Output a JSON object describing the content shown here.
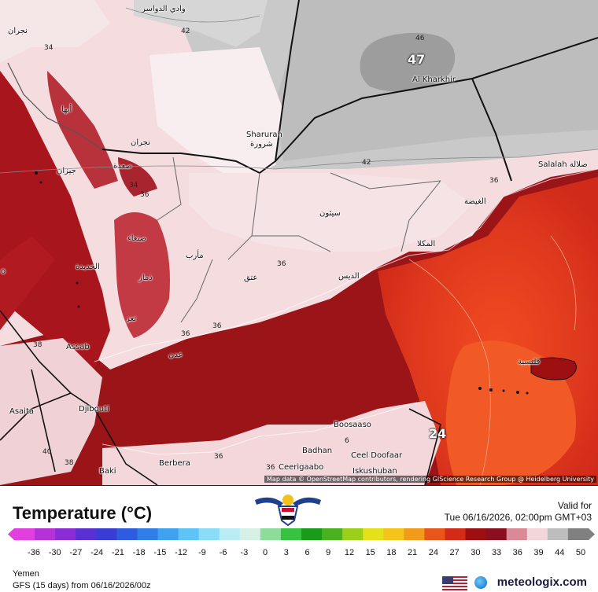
{
  "map": {
    "labels": {
      "wadi_dawasir": "وادي الدواسر",
      "najran_top": "نجران",
      "abha": "أبها",
      "najran": "نجران",
      "jizan": "جيزان",
      "saada": "صعدة",
      "sharurah": "Sharurah",
      "sharurah_ar": "شرورة",
      "al_kharkhir": "Al Kharkhir",
      "salalah": "Salalah صلالة",
      "al_ghaydah": "الغيضة",
      "sayun": "سيئون",
      "sanaa": "صنعاء",
      "hodeidah": "الحديدة",
      "marib": "مأرب",
      "dhamar": "ذمار",
      "ataq": "عتق",
      "mukalla": "المكلا",
      "dis": "الديس",
      "taiz": "تعز",
      "aden": "عدن",
      "assab": "Assab",
      "asaita": "Asaita",
      "djibouti": "Djibouti",
      "socotra": "قلنسية",
      "boosaaso": "Boosaaso",
      "badhan": "Badhan",
      "ceel_doofaar": "Ceel Doofaar",
      "ceerigaabo": "Ceerigaabo",
      "iskushuban": "Iskushuban",
      "berbera": "Berbera",
      "baki": "Baki",
      "o_edge": "o"
    },
    "contours": {
      "c42_top": "42",
      "c46": "46",
      "c42_mid": "42",
      "c34a": "34",
      "c34b": "34",
      "c36a": "36",
      "c36b": "36",
      "c36c": "36",
      "c36d": "36",
      "c36e": "36",
      "c36f": "36",
      "c38a": "38",
      "c38b": "38",
      "c40": "40",
      "c36g": "36",
      "c6": "6"
    },
    "max_value": "47",
    "min_value": "24",
    "attribution": "Map data © OpenStreetMap contributors, rendering GIScience Research Group @ Heidelberg University"
  },
  "legend": {
    "title": "Temperature (°C)",
    "valid_label": "Valid for",
    "valid_time": "Tue 06/16/2026, 02:00pm GMT+03",
    "ticks": [
      "-36",
      "-30",
      "-27",
      "-24",
      "-21",
      "-18",
      "-15",
      "-12",
      "-9",
      "-6",
      "-3",
      "0",
      "3",
      "6",
      "9",
      "12",
      "15",
      "18",
      "21",
      "24",
      "27",
      "30",
      "33",
      "36",
      "39",
      "44",
      "50"
    ],
    "colors": [
      "#e13fe0",
      "#b532d6",
      "#8a2dd6",
      "#5a2fd4",
      "#3a3cd6",
      "#2f5be0",
      "#2f7ee8",
      "#3ea2f0",
      "#5ec3f5",
      "#8adcf7",
      "#b9ecf5",
      "#d6f0e6",
      "#8fdc9a",
      "#37c23f",
      "#1a9c1a",
      "#4cb11e",
      "#9ccf1a",
      "#e4e01a",
      "#f5c41a",
      "#f29a1a",
      "#e8561a",
      "#d42a18",
      "#9e0f12",
      "#8a1020",
      "#d98a96",
      "#f2d6da",
      "#bdbdbd",
      "#808080"
    ],
    "region": "Yemen",
    "model": "GFS (15 days) from 06/16/2026/00z",
    "brand": "meteologix.com"
  }
}
